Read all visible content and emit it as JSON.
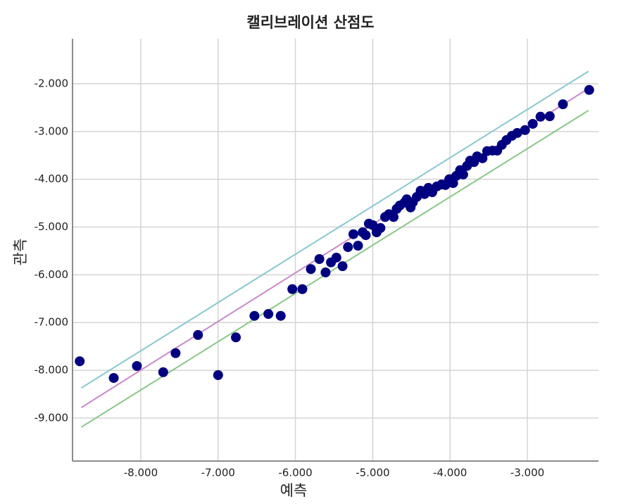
{
  "chart_data": {
    "type": "scatter",
    "title": "캘리브레이션 산점도",
    "x_label": "예측",
    "y_label": "관측",
    "x": [
      -8.79,
      -8.35,
      -8.05,
      -7.71,
      -7.55,
      -7.26,
      -7.0,
      -6.77,
      -6.53,
      -6.35,
      -6.19,
      -6.04,
      -5.91,
      -5.8,
      -5.69,
      -5.61,
      -5.54,
      -5.47,
      -5.39,
      -5.32,
      -5.25,
      -5.19,
      -5.13,
      -5.09,
      -5.05,
      -5.0,
      -4.95,
      -4.9,
      -4.84,
      -4.79,
      -4.73,
      -4.69,
      -4.65,
      -4.59,
      -4.56,
      -4.51,
      -4.48,
      -4.43,
      -4.38,
      -4.33,
      -4.28,
      -4.23,
      -4.17,
      -4.11,
      -4.06,
      -4.01,
      -3.96,
      -3.92,
      -3.87,
      -3.83,
      -3.78,
      -3.74,
      -3.69,
      -3.65,
      -3.58,
      -3.52,
      -3.45,
      -3.39,
      -3.33,
      -3.27,
      -3.2,
      -3.13,
      -3.03,
      -2.93,
      -2.83,
      -2.71,
      -2.54,
      -2.2
    ],
    "values": [
      -7.81,
      -8.16,
      -7.91,
      -8.04,
      -7.64,
      -7.26,
      -8.1,
      -7.31,
      -6.86,
      -6.82,
      -6.86,
      -6.3,
      -6.3,
      -5.88,
      -5.67,
      -5.95,
      -5.74,
      -5.64,
      -5.82,
      -5.42,
      -5.15,
      -5.39,
      -5.11,
      -5.17,
      -4.93,
      -4.96,
      -5.11,
      -5.02,
      -4.79,
      -4.73,
      -4.79,
      -4.62,
      -4.55,
      -4.49,
      -4.42,
      -4.59,
      -4.48,
      -4.37,
      -4.24,
      -4.31,
      -4.18,
      -4.27,
      -4.15,
      -4.11,
      -4.12,
      -4.0,
      -4.08,
      -3.93,
      -3.81,
      -3.9,
      -3.72,
      -3.61,
      -3.64,
      -3.52,
      -3.56,
      -3.41,
      -3.4,
      -3.4,
      -3.28,
      -3.18,
      -3.09,
      -3.03,
      -2.97,
      -2.84,
      -2.69,
      -2.68,
      -2.43,
      -2.13
    ],
    "color": "#000080",
    "lines": [
      {
        "color": "#88c8d0",
        "x": [
          -8.77,
          -2.21
        ],
        "values": [
          -8.37,
          -1.74
        ]
      },
      {
        "color": "#cc88cc",
        "x": [
          -8.77,
          -2.21
        ],
        "values": [
          -8.78,
          -2.1
        ]
      },
      {
        "color": "#88c888",
        "x": [
          -8.77,
          -2.21
        ],
        "values": [
          -9.19,
          -2.56
        ]
      }
    ],
    "xlim": [
      -8.883,
      -2.08
    ],
    "ylim": [
      -9.9,
      -1.057
    ],
    "xticks": [
      {
        "value": -8,
        "label": "-8.000"
      },
      {
        "value": -7,
        "label": "-7.000"
      },
      {
        "value": -6,
        "label": "-6.000"
      },
      {
        "value": -5,
        "label": "-5.000"
      },
      {
        "value": -4,
        "label": "-4.000"
      },
      {
        "value": -3,
        "label": "-3.000"
      }
    ],
    "yticks": [
      {
        "value": -2,
        "label": "-2.000"
      },
      {
        "value": -3,
        "label": "-3.000"
      },
      {
        "value": -4,
        "label": "-4.000"
      },
      {
        "value": -5,
        "label": "-5.000"
      },
      {
        "value": -6,
        "label": "-6.000"
      },
      {
        "value": -7,
        "label": "-7.000"
      },
      {
        "value": -8,
        "label": "-8.000"
      },
      {
        "value": -9,
        "label": "-9.000"
      }
    ],
    "grid": true
  }
}
